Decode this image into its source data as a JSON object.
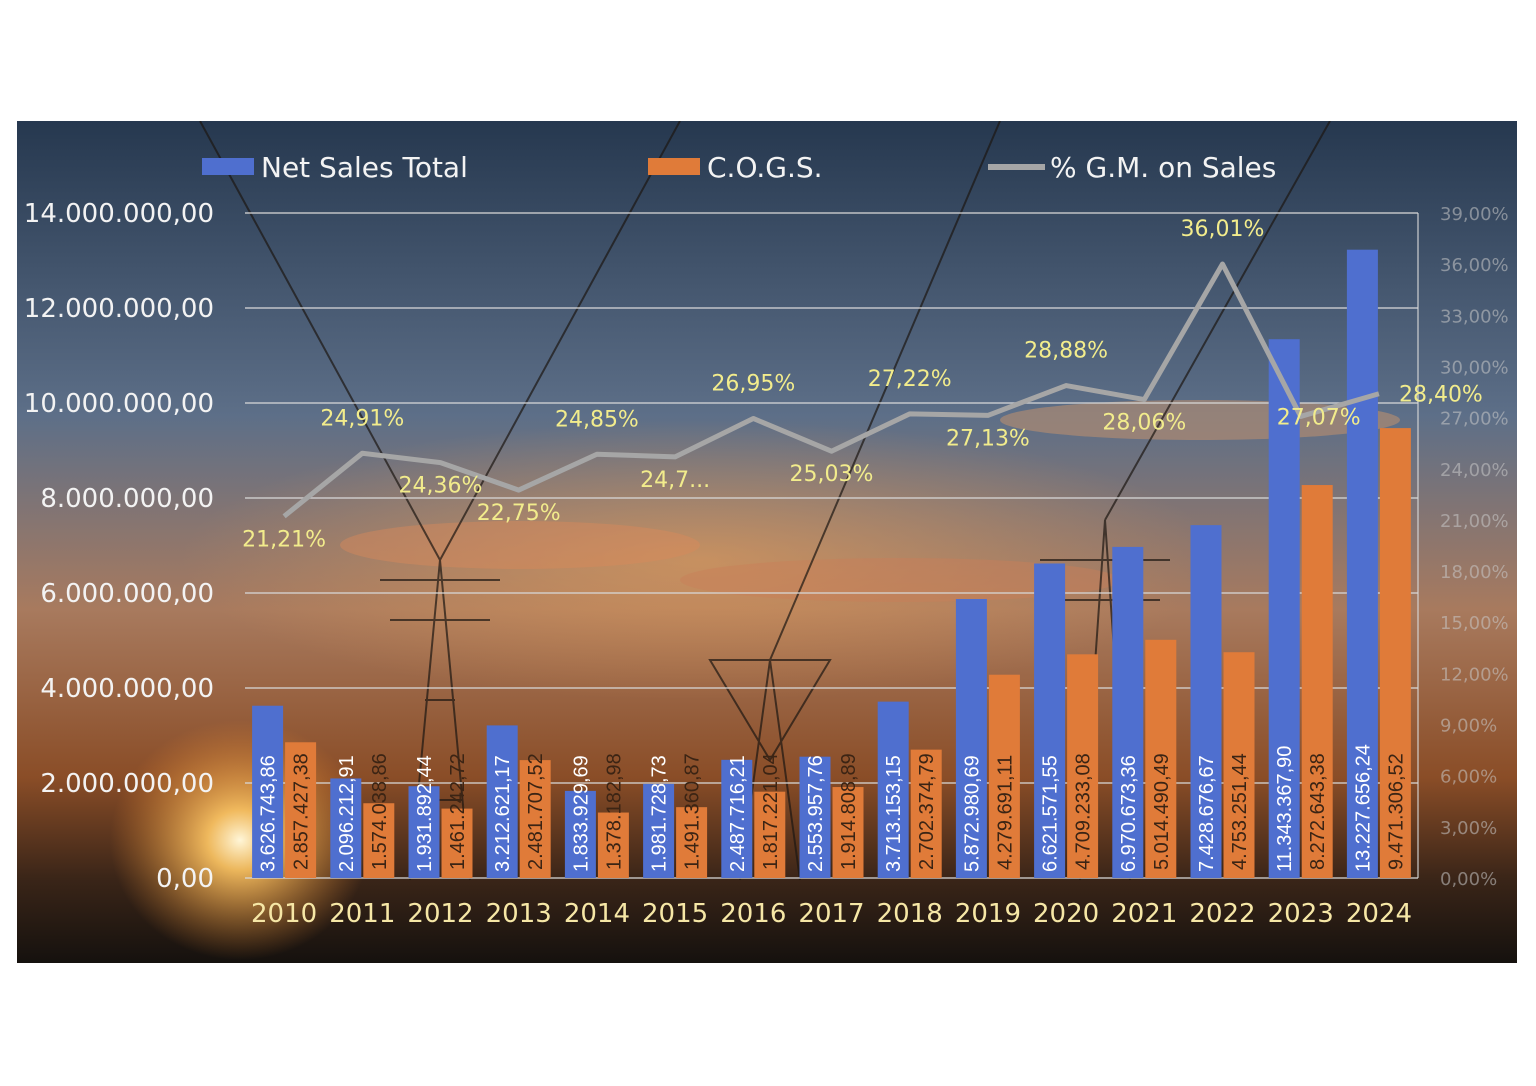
{
  "chart_data": {
    "type": "bar",
    "categories": [
      "2010",
      "2011",
      "2012",
      "2013",
      "2014",
      "2015",
      "2016",
      "2017",
      "2018",
      "2019",
      "2020",
      "2021",
      "2022",
      "2023",
      "2024"
    ],
    "series": [
      {
        "name": "Net Sales Total",
        "kind": "bar",
        "color": "#4f6fcf",
        "values": [
          3626743.86,
          2096212.91,
          1931892.44,
          3212621.17,
          1833929.69,
          1981728.73,
          2487716.21,
          2553957.76,
          3713153.15,
          5872980.69,
          6621571.55,
          6970673.36,
          7428676.67,
          11343367.9,
          13227656.24
        ],
        "labels": [
          "3.626.743,86",
          "2.096.212,91",
          "1.931.892,44",
          "3.212.621,17",
          "1.833.929,69",
          "1.981.728,73",
          "2.487.716,21",
          "2.553.957,76",
          "3.713.153,15",
          "5.872.980,69",
          "6.621.571,55",
          "6.970.673,36",
          "7.428.676,67",
          "11.343.367,90",
          "13.227.656,24"
        ]
      },
      {
        "name": "C.O.G.S.",
        "kind": "bar",
        "color": "#e07b39",
        "values": [
          2857427.38,
          1574038.86,
          1461242.72,
          2481707.52,
          1378182.98,
          1491360.87,
          1817221.04,
          1914808.89,
          2702374.79,
          4279691.11,
          4709233.08,
          5014490.49,
          4753251.44,
          8272643.38,
          9471306.52
        ],
        "labels": [
          "2.857.427,38",
          "1.574.038,86",
          "1.461.242,72",
          "2.481.707,52",
          "1.378.182,98",
          "1.491.360,87",
          "1.817.221,04",
          "1.914.808,89",
          "2.702.374,79",
          "4.279.691,11",
          "4.709.233,08",
          "5.014.490,49",
          "4.753.251,44",
          "8.272.643,38",
          "9.471.306,52"
        ]
      },
      {
        "name": "% G.M. on Sales",
        "kind": "line",
        "axis": "right",
        "color": "#a6a6a6",
        "values": [
          21.21,
          24.91,
          24.36,
          22.75,
          24.85,
          24.7,
          26.95,
          25.03,
          27.22,
          27.13,
          28.88,
          28.06,
          36.01,
          27.07,
          28.4
        ],
        "labels": [
          "21,21%",
          "24,91%",
          "24,36%",
          "22,75%",
          "24,85%",
          "24,7...",
          "26,95%",
          "25,03%",
          "27,22%",
          "27,13%",
          "28,88%",
          "28,06%",
          "36,01%",
          "27,07%",
          "28,40%"
        ]
      }
    ],
    "y_left": {
      "min": 0,
      "max": 14000000,
      "ticks": [
        "0,00",
        "2.000.000,00",
        "4.000.000,00",
        "6.000.000,00",
        "8.000.000,00",
        "10.000.000,00",
        "12.000.000,00",
        "14.000.000,00"
      ]
    },
    "y_right": {
      "min": 0,
      "max": 39,
      "ticks": [
        "0,00%",
        "3,00%",
        "6,00%",
        "9,00%",
        "12,00%",
        "15,00%",
        "18,00%",
        "21,00%",
        "24,00%",
        "27,00%",
        "30,00%",
        "33,00%",
        "36,00%",
        "39,00%"
      ]
    },
    "grid": true,
    "legend_position": "top",
    "colors": {
      "label_text": "#f2ec8c",
      "axis_text": "#f3f3f3",
      "grid": "#d8d8d8",
      "year_text": "#f6e7a6"
    }
  }
}
